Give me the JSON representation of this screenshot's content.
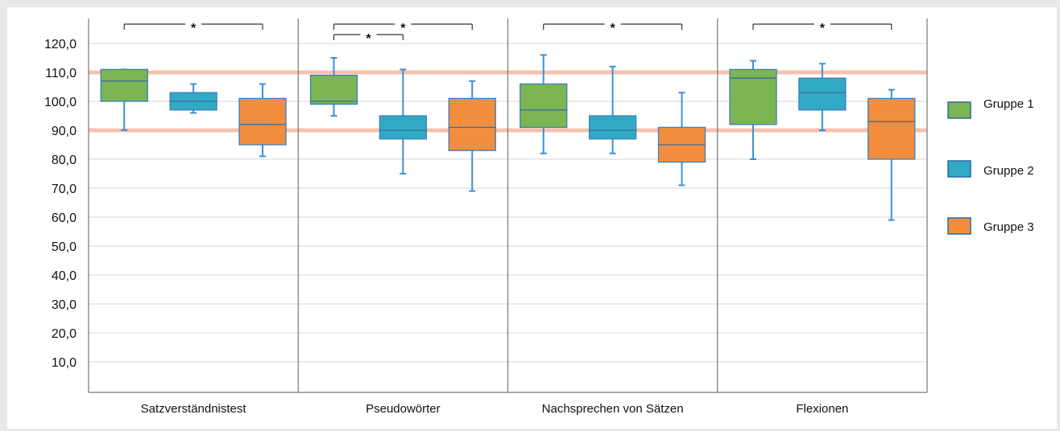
{
  "chart_data": {
    "type": "box",
    "title": "",
    "xlabel": "",
    "ylabel": "",
    "ylim": [
      0,
      120
    ],
    "yticks": [
      "120,0",
      "110,0",
      "100,0",
      "90,0",
      "80,0",
      "70,0",
      "60,0",
      "50,0",
      "40,0",
      "30,0",
      "20,0",
      "10,0"
    ],
    "reference_lines": [
      110,
      90
    ],
    "grid": true,
    "legend_position": "right",
    "categories": [
      "Satzverständnistest",
      "Pseudowörter",
      "Nachsprechen von Sätzen",
      "Flexionen"
    ],
    "series": [
      {
        "name": "Gruppe 1",
        "color": "#7cb552",
        "boxes": [
          {
            "min": 90,
            "q1": 100,
            "median": 107,
            "q3": 111,
            "max": 111
          },
          {
            "min": 95,
            "q1": 99,
            "median": 100,
            "q3": 109,
            "max": 115
          },
          {
            "min": 82,
            "q1": 91,
            "median": 97,
            "q3": 106,
            "max": 116
          },
          {
            "min": 80,
            "q1": 92,
            "median": 108,
            "q3": 111,
            "max": 114
          }
        ]
      },
      {
        "name": "Gruppe 2",
        "color": "#31a9c4",
        "boxes": [
          {
            "min": 96,
            "q1": 97,
            "median": 100,
            "q3": 103,
            "max": 106
          },
          {
            "min": 75,
            "q1": 87,
            "median": 90,
            "q3": 95,
            "max": 111
          },
          {
            "min": 82,
            "q1": 87,
            "median": 90,
            "q3": 95,
            "max": 112
          },
          {
            "min": 90,
            "q1": 97,
            "median": 103,
            "q3": 108,
            "max": 113
          }
        ]
      },
      {
        "name": "Gruppe 3",
        "color": "#f28e3e",
        "boxes": [
          {
            "min": 81,
            "q1": 85,
            "median": 92,
            "q3": 101,
            "max": 106
          },
          {
            "min": 69,
            "q1": 83,
            "median": 91,
            "q3": 101,
            "max": 107
          },
          {
            "min": 71,
            "q1": 79,
            "median": 85,
            "q3": 91,
            "max": 103
          },
          {
            "min": 59,
            "q1": 80,
            "median": 93,
            "q3": 101,
            "max": 104
          }
        ]
      }
    ],
    "significance": [
      {
        "category": 0,
        "from": 0,
        "to": 2,
        "label": "*"
      },
      {
        "category": 1,
        "from": 0,
        "to": 2,
        "label": "*"
      },
      {
        "category": 1,
        "from": 0,
        "to": 1,
        "label": "*"
      },
      {
        "category": 2,
        "from": 0,
        "to": 2,
        "label": "*"
      },
      {
        "category": 3,
        "from": 0,
        "to": 2,
        "label": "*"
      }
    ]
  }
}
